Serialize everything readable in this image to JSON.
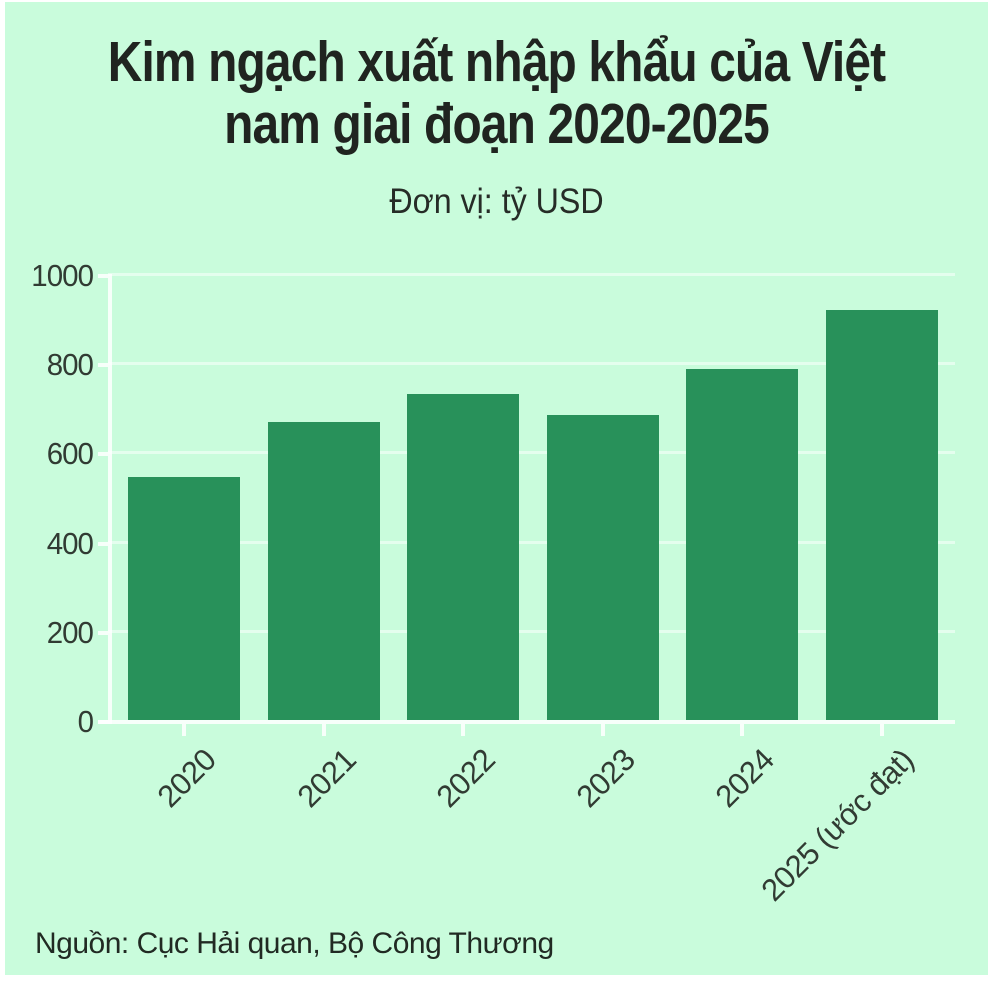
{
  "page": {
    "background": "#ffffff",
    "card_background": "#c9fcdc"
  },
  "header": {
    "title_line1": "Kim ngạch xuất nhập khẩu của Việt",
    "title_line2": "nam giai đoạn 2020-2025",
    "subtitle": "Đơn vị: tỷ USD"
  },
  "footer": {
    "source": "Nguồn: Cục Hải quan, Bộ Công Thương"
  },
  "chart_data": {
    "type": "bar",
    "title": "Kim ngạch xuất nhập khẩu của Việt nam giai đoạn 2020-2025",
    "subtitle": "Đơn vị: tỷ USD",
    "unit": "tỷ USD",
    "source": "Nguồn: Cục Hải quan, Bộ Công Thương",
    "categories": [
      "2020",
      "2021",
      "2022",
      "2023",
      "2024",
      "2025 (ước đạt)"
    ],
    "values": [
      545,
      669,
      730,
      683,
      786,
      920
    ],
    "ylim": [
      0,
      1000
    ],
    "yticks": [
      0,
      200,
      400,
      600,
      800,
      1000
    ],
    "grid": true,
    "legend": "none",
    "bar_color": "#28915a",
    "background_color": "#c9fcdc",
    "gridline_color": "rgba(255,255,255,0.5)",
    "axis_color": "rgba(255,255,255,0.85)",
    "text_color": "#313b33"
  }
}
